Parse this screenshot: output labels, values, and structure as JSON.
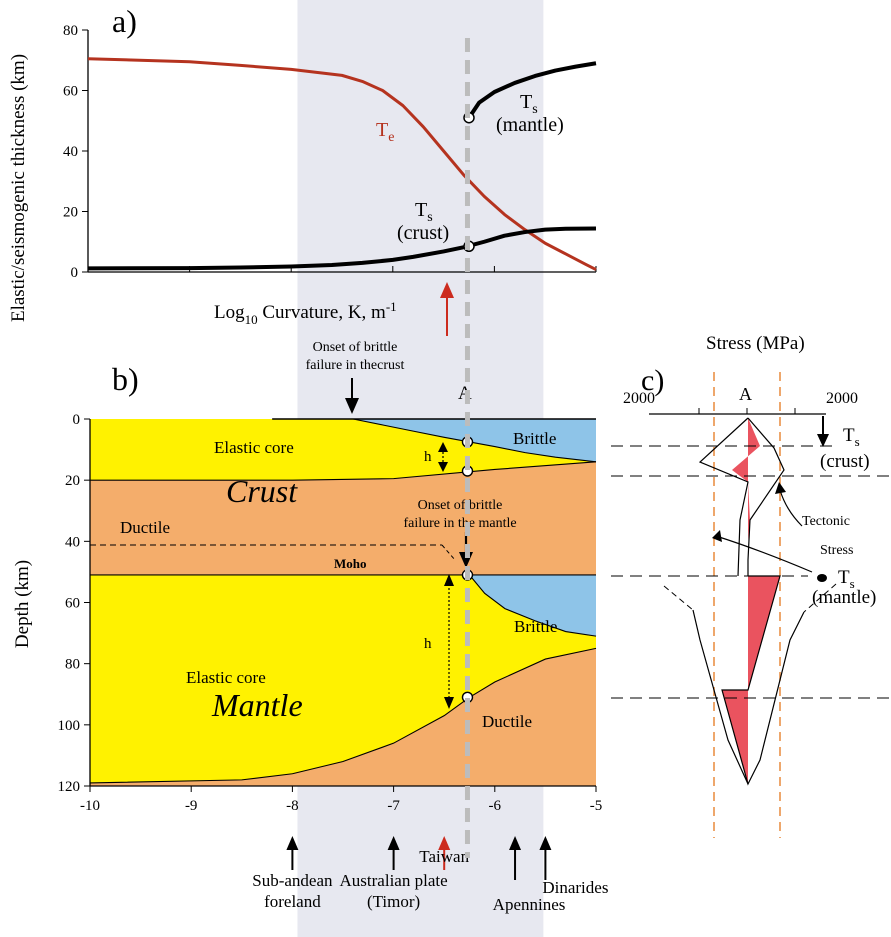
{
  "colors": {
    "band": "#e7e8f0",
    "elastic": "#fff200",
    "ductile": "#f4ad6b",
    "brittle": "#8ec4e8",
    "te_line": "#b5331f",
    "taiwan_arrow": "#cc2b1e",
    "stress_fill": "#e8404e",
    "stress_guides": "#e88a3c",
    "dashed_A": "#bcbcbc"
  },
  "chart_data": [
    {
      "type": "line",
      "panel": "a)",
      "ylabel": "Elastic/seismogenic thickness (km)",
      "xlabel_prefix": "Log",
      "xlabel_sub": "10",
      "xlabel_mid": " Curvature, K, m",
      "xlabel_sup": "-1",
      "xlim": [
        -10,
        -5
      ],
      "ylim": [
        0,
        80
      ],
      "yticks": [
        "0",
        "20",
        "40",
        "60",
        "80"
      ],
      "series": [
        {
          "name": "Te",
          "name_main": "T",
          "name_sub": "e",
          "x": [
            -10,
            -9,
            -8.5,
            -8,
            -7.5,
            -7.3,
            -7.1,
            -6.9,
            -6.7,
            -6.5,
            -6.3,
            -6.1,
            -5.9,
            -5.7,
            -5.5,
            -5.3,
            -5.1,
            -5.0
          ],
          "y": [
            70.5,
            69.5,
            68.3,
            67,
            65,
            63,
            60,
            55,
            48,
            40,
            32,
            25,
            19,
            14,
            9.5,
            6,
            2.5,
            0.8
          ]
        },
        {
          "name": "Ts (crust)",
          "name_main": "T",
          "name_sub": "s",
          "name_paren": "(crust)",
          "x": [
            -10,
            -9,
            -8.5,
            -8,
            -7.6,
            -7.3,
            -7.0,
            -6.8,
            -6.5,
            -6.3,
            -6.1,
            -5.9,
            -5.7,
            -5.5,
            -5.3,
            -5.0
          ],
          "y": [
            1.2,
            1.3,
            1.5,
            1.8,
            2.3,
            3,
            4,
            5,
            6.8,
            8.2,
            10,
            12,
            13.2,
            14,
            14.3,
            14.4
          ]
        },
        {
          "name": "Ts (mantle)",
          "name_main": "T",
          "name_sub": "s",
          "name_paren": "(mantle)",
          "x": [
            -6.25,
            -6.15,
            -6.0,
            -5.8,
            -5.6,
            -5.4,
            -5.2,
            -5.0
          ],
          "y": [
            51,
            56,
            59.5,
            62.5,
            64.8,
            66.6,
            67.9,
            69
          ]
        }
      ],
      "markers": [
        {
          "x": -6.25,
          "y": 51
        },
        {
          "x": -6.25,
          "y": 8.5
        }
      ]
    },
    {
      "type": "area",
      "panel": "b)",
      "ylabel": "Depth (km)",
      "xlim": [
        -10,
        -5
      ],
      "ylim": [
        0,
        120
      ],
      "xticks": [
        "-10",
        "-9",
        "-8",
        "-7",
        "-6",
        "-5"
      ],
      "yticks": [
        "0",
        "20",
        "40",
        "60",
        "80",
        "100",
        "120"
      ],
      "layers": [
        {
          "name": "Elastic core (crust)",
          "upper_x": [
            -10,
            -5
          ],
          "upper_y": [
            0,
            0
          ],
          "lower_x": [
            -10,
            -8,
            -7,
            -6,
            -5
          ],
          "lower_y": [
            20,
            20,
            19.5,
            16.5,
            14
          ]
        },
        {
          "name": "Brittle (crust)",
          "upper_y": [
            0,
            0
          ],
          "lower_x": [
            -7.4,
            -7.1,
            -6.8,
            -6.5,
            -6.25,
            -6.0,
            -5.7,
            -5.4,
            -5.0
          ],
          "lower_y": [
            0,
            2,
            4,
            6,
            7.5,
            9,
            11,
            12.5,
            14
          ]
        },
        {
          "name": "Elastic core (mantle)",
          "upper_y": [
            51,
            51
          ],
          "lower_x": [
            -10,
            -8.5,
            -8,
            -7.5,
            -7.0,
            -6.5,
            -6.25,
            -6.0,
            -5.5,
            -5.0
          ],
          "lower_y": [
            119,
            118,
            116,
            112,
            106,
            97,
            91,
            86,
            78.5,
            75
          ]
        },
        {
          "name": "Brittle (mantle)",
          "lower_x": [
            -6.25,
            -6.1,
            -5.9,
            -5.6,
            -5.3,
            -5.0
          ],
          "lower_y": [
            51,
            57,
            62,
            66,
            69.5,
            71
          ]
        }
      ],
      "region_labels": {
        "elastic_core": "Elastic core",
        "brittle": "Brittle",
        "ductile": "Ductile",
        "crust": "Crust",
        "mantle": "Mantle",
        "moho": "Moho",
        "h": "h",
        "A": "A"
      },
      "onset_crust": "Onset of brittle\nfailure in thecrust",
      "onset_mantle": "Onset of brittle\nfailure in the mantle",
      "examples": [
        {
          "label": "Sub-andean\nforeland",
          "x": -8.0,
          "color": "black"
        },
        {
          "label": "Australian plate\n(Timor)",
          "x": -7.0,
          "color": "black"
        },
        {
          "label": "Taiwan",
          "x": -6.5,
          "color": "red"
        },
        {
          "label": "Apennines",
          "x": -5.8,
          "color": "black"
        },
        {
          "label": "Dinarides",
          "x": -5.5,
          "color": "black"
        }
      ],
      "highlight_band": {
        "x": [
          -7.95,
          -5.52
        ]
      },
      "section_line": {
        "x": -6.27,
        "label": "A"
      }
    },
    {
      "type": "line",
      "panel": "c)",
      "title": "Stress (MPa)",
      "xticks": [
        "2000",
        "A",
        "2000"
      ],
      "annotations": {
        "ts_crust_main": "T",
        "ts_crust_sub": "s",
        "ts_crust_paren": "(crust)",
        "tectonic": "Tectonic\nStress",
        "ts_mantle_main": "T",
        "ts_mantle_sub": "s",
        "ts_mantle_paren": "(mantle)"
      }
    }
  ]
}
